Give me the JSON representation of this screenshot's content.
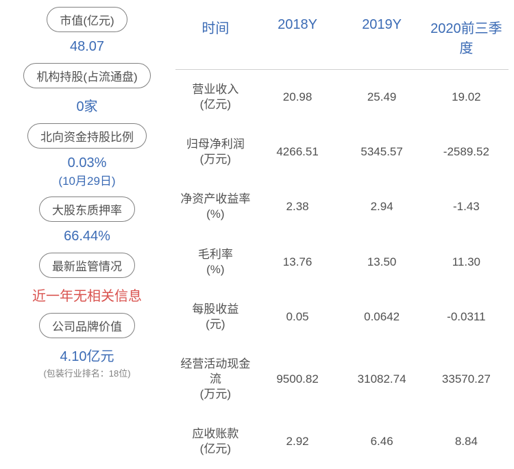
{
  "leftMetrics": [
    {
      "label": "市值(亿元)",
      "value": "48.07",
      "color": "blue"
    },
    {
      "label": "机构持股(占流通盘)",
      "value": "0家",
      "color": "blue"
    },
    {
      "label": "北向资金持股比例",
      "value": "0.03%",
      "sub": "(10月29日)",
      "color": "blue"
    },
    {
      "label": "大股东质押率",
      "value": "66.44%",
      "color": "blue"
    },
    {
      "label": "最新监管情况",
      "value": "近一年无相关信息",
      "color": "red"
    },
    {
      "label": "公司品牌价值",
      "value": "4.10亿元",
      "note": "(包装行业排名：18位)",
      "color": "blue"
    }
  ],
  "table": {
    "headers": [
      "时间",
      "2018Y",
      "2019Y",
      "2020前三季度"
    ],
    "rows": [
      {
        "label": "营业收入",
        "unit": "(亿元)",
        "values": [
          "20.98",
          "25.49",
          "19.02"
        ]
      },
      {
        "label": "归母净利润",
        "unit": "(万元)",
        "values": [
          "4266.51",
          "5345.57",
          "-2589.52"
        ]
      },
      {
        "label": "净资产收益率",
        "unit": "(%)",
        "values": [
          "2.38",
          "2.94",
          "-1.43"
        ]
      },
      {
        "label": "毛利率",
        "unit": "(%)",
        "values": [
          "13.76",
          "13.50",
          "11.30"
        ]
      },
      {
        "label": "每股收益",
        "unit": "(元)",
        "values": [
          "0.05",
          "0.0642",
          "-0.0311"
        ]
      },
      {
        "label": "经营活动现金流",
        "unit": "(万元)",
        "values": [
          "9500.82",
          "31082.74",
          "33570.27"
        ]
      },
      {
        "label": "应收账款",
        "unit": "(亿元)",
        "values": [
          "2.92",
          "6.46",
          "8.84"
        ]
      }
    ]
  }
}
